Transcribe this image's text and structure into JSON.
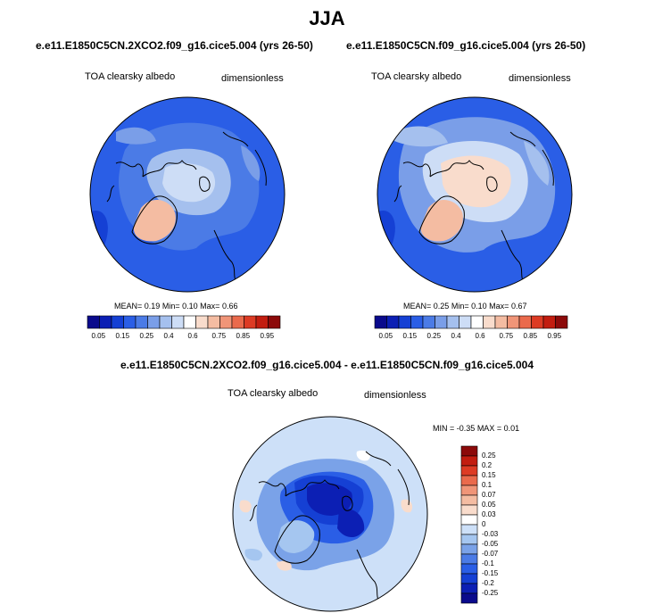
{
  "title": "JJA",
  "panels": [
    {
      "case": "e.e11.E1850C5CN.2XCO2.f09_g16.cice5.004 (yrs 26-50)",
      "variable": "TOA clearsky albedo",
      "units": "dimensionless",
      "stats": {
        "mean": "0.19",
        "min": "0.10",
        "max": "0.66"
      },
      "stats_labels": {
        "mean": "MEAN=",
        "min": "Min=",
        "max": "Max="
      }
    },
    {
      "case": "e.e11.E1850C5CN.f09_g16.cice5.004 (yrs 26-50)",
      "variable": "TOA clearsky albedo",
      "units": "dimensionless",
      "stats": {
        "mean": "0.25",
        "min": "0.10",
        "max": "0.67"
      },
      "stats_labels": {
        "mean": "MEAN=",
        "min": "Min=",
        "max": "Max="
      }
    }
  ],
  "colorbar_main": {
    "ticks": [
      "0.05",
      "0.15",
      "0.25",
      "0.4",
      "0.6",
      "0.75",
      "0.85",
      "0.95"
    ],
    "colors": [
      "#0a0a8c",
      "#0c1fb4",
      "#1540d4",
      "#2a5ee6",
      "#4b7be6",
      "#7a9ee8",
      "#a5c0ee",
      "#cdddf6",
      "#ffffff",
      "#f9dccc",
      "#f4bca2",
      "#f09578",
      "#ea6a4c",
      "#dd3b24",
      "#c21d10",
      "#8c0a0a"
    ]
  },
  "difference": {
    "title": "e.e11.E1850C5CN.2XCO2.f09_g16.cice5.004 - e.e11.E1850C5CN.f09_g16.cice5.004",
    "variable": "TOA clearsky albedo",
    "units": "dimensionless",
    "min_label": "MIN =",
    "min": "-0.35",
    "max_label": "MAX =",
    "max": "0.01",
    "levels": [
      "0.25",
      "0.2",
      "0.15",
      "0.1",
      "0.07",
      "0.05",
      "0.03",
      "0",
      "-0.03",
      "-0.05",
      "-0.07",
      "-0.1",
      "-0.15",
      "-0.2",
      "-0.25"
    ],
    "colors": [
      "#8c0a0a",
      "#c21d10",
      "#dd3b24",
      "#ea6a4c",
      "#f09578",
      "#f4bca2",
      "#f9dccc",
      "#ffffff",
      "#cde0f8",
      "#a5c6f0",
      "#7aa2e8",
      "#4b7be6",
      "#2a5ee6",
      "#1540d4",
      "#0c1fb4",
      "#0a0a8c"
    ]
  }
}
